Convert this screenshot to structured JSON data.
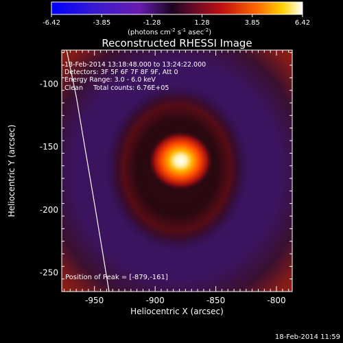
{
  "colorbar": {
    "ticks": [
      "-6.42",
      "-3.85",
      "-1.28",
      "1.28",
      "3.85",
      "6.42"
    ],
    "tick_values": [
      -6.42,
      -3.85,
      -1.28,
      1.28,
      3.85,
      6.42
    ],
    "range": [
      -6.42,
      6.42
    ],
    "units_prefix": "(photons cm",
    "units_exp1": "-2",
    "units_mid": " s",
    "units_exp2": "-1",
    "units_mid2": " asec",
    "units_exp3": "-2",
    "units_suffix": ")"
  },
  "chart_data": {
    "type": "heatmap",
    "title": "Reconstructed RHESSI Image",
    "xlabel": "Heliocentric X (arcsec)",
    "ylabel": "Heliocentric Y (arcsec)",
    "xlim": [
      -977,
      -787
    ],
    "ylim": [
      -265,
      -73
    ],
    "x_ticks": [
      -950,
      -900,
      -850,
      -800
    ],
    "y_ticks": [
      -100,
      -150,
      -200,
      -250
    ],
    "x_tick_labels": [
      "-950",
      "-900",
      "-850",
      "-800"
    ],
    "y_tick_labels": [
      "-100",
      "-150",
      "-200",
      "-250"
    ],
    "peak": {
      "x": -879,
      "y": -161
    },
    "info_lines": [
      "18-Feb-2014 13:18:48.000 to 13:24:22.000",
      "Detectors: 3F 5F 6F 7F 8F 9F, Att 0",
      "Energy Range: 3.0 - 6.0 keV",
      "Clean     Total counts: 6.76E+05"
    ],
    "peak_label": "Position of Peak = [-879,-161]",
    "limb_curve": [
      [
        -973,
        -73
      ],
      [
        -965,
        -110
      ],
      [
        -958,
        -150
      ],
      [
        -950,
        -195
      ],
      [
        -944,
        -230
      ],
      [
        -938,
        -265
      ]
    ],
    "colormap": [
      "#0000ff",
      "#6a1bb0",
      "#3b1460",
      "#1a0a1a",
      "#b01010",
      "#ff7000",
      "#ffffff"
    ]
  },
  "footer": {
    "timestamp": "18-Feb-2014 11:59"
  }
}
